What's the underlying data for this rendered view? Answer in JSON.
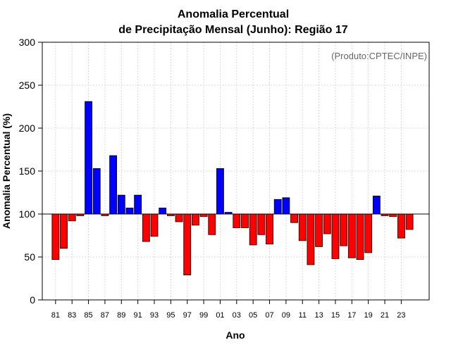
{
  "chart_data": {
    "type": "bar",
    "title_line1": "Anomalia Percentual",
    "title_line2": "de Precipitação Mensal (Junho): Região 17",
    "xlabel": "Ano",
    "ylabel": "Anomalia Percentual (%)",
    "credit": "(Produto:CPTEC/INPE)",
    "baseline": 100,
    "ylim": [
      0,
      300
    ],
    "yticks": [
      0,
      50,
      100,
      150,
      200,
      250,
      300
    ],
    "x": [
      1981,
      1982,
      1983,
      1984,
      1985,
      1986,
      1987,
      1988,
      1989,
      1990,
      1991,
      1992,
      1993,
      1994,
      1995,
      1996,
      1997,
      1998,
      1999,
      2000,
      2001,
      2002,
      2003,
      2004,
      2005,
      2006,
      2007,
      2008,
      2009,
      2010,
      2011,
      2012,
      2013,
      2014,
      2015,
      2016,
      2017,
      2018,
      2019,
      2020,
      2021,
      2022,
      2023,
      2024
    ],
    "xtick_labels": [
      "81",
      "83",
      "85",
      "87",
      "89",
      "91",
      "93",
      "95",
      "97",
      "99",
      "01",
      "03",
      "05",
      "07",
      "09",
      "11",
      "13",
      "15",
      "17",
      "19",
      "21",
      "23"
    ],
    "values": [
      47,
      60,
      92,
      98,
      231,
      153,
      98,
      168,
      122,
      107,
      122,
      68,
      74,
      107,
      98,
      91,
      29,
      87,
      97,
      76,
      153,
      102,
      84,
      84,
      64,
      76,
      65,
      117,
      119,
      90,
      69,
      41,
      62,
      77,
      48,
      63,
      49,
      47,
      55,
      121,
      98,
      97,
      72,
      82
    ],
    "colors": {
      "above": "#0000ff",
      "below": "#ff0000",
      "edge": "#000000",
      "grid": "#d9d9d9"
    },
    "grid": true
  }
}
